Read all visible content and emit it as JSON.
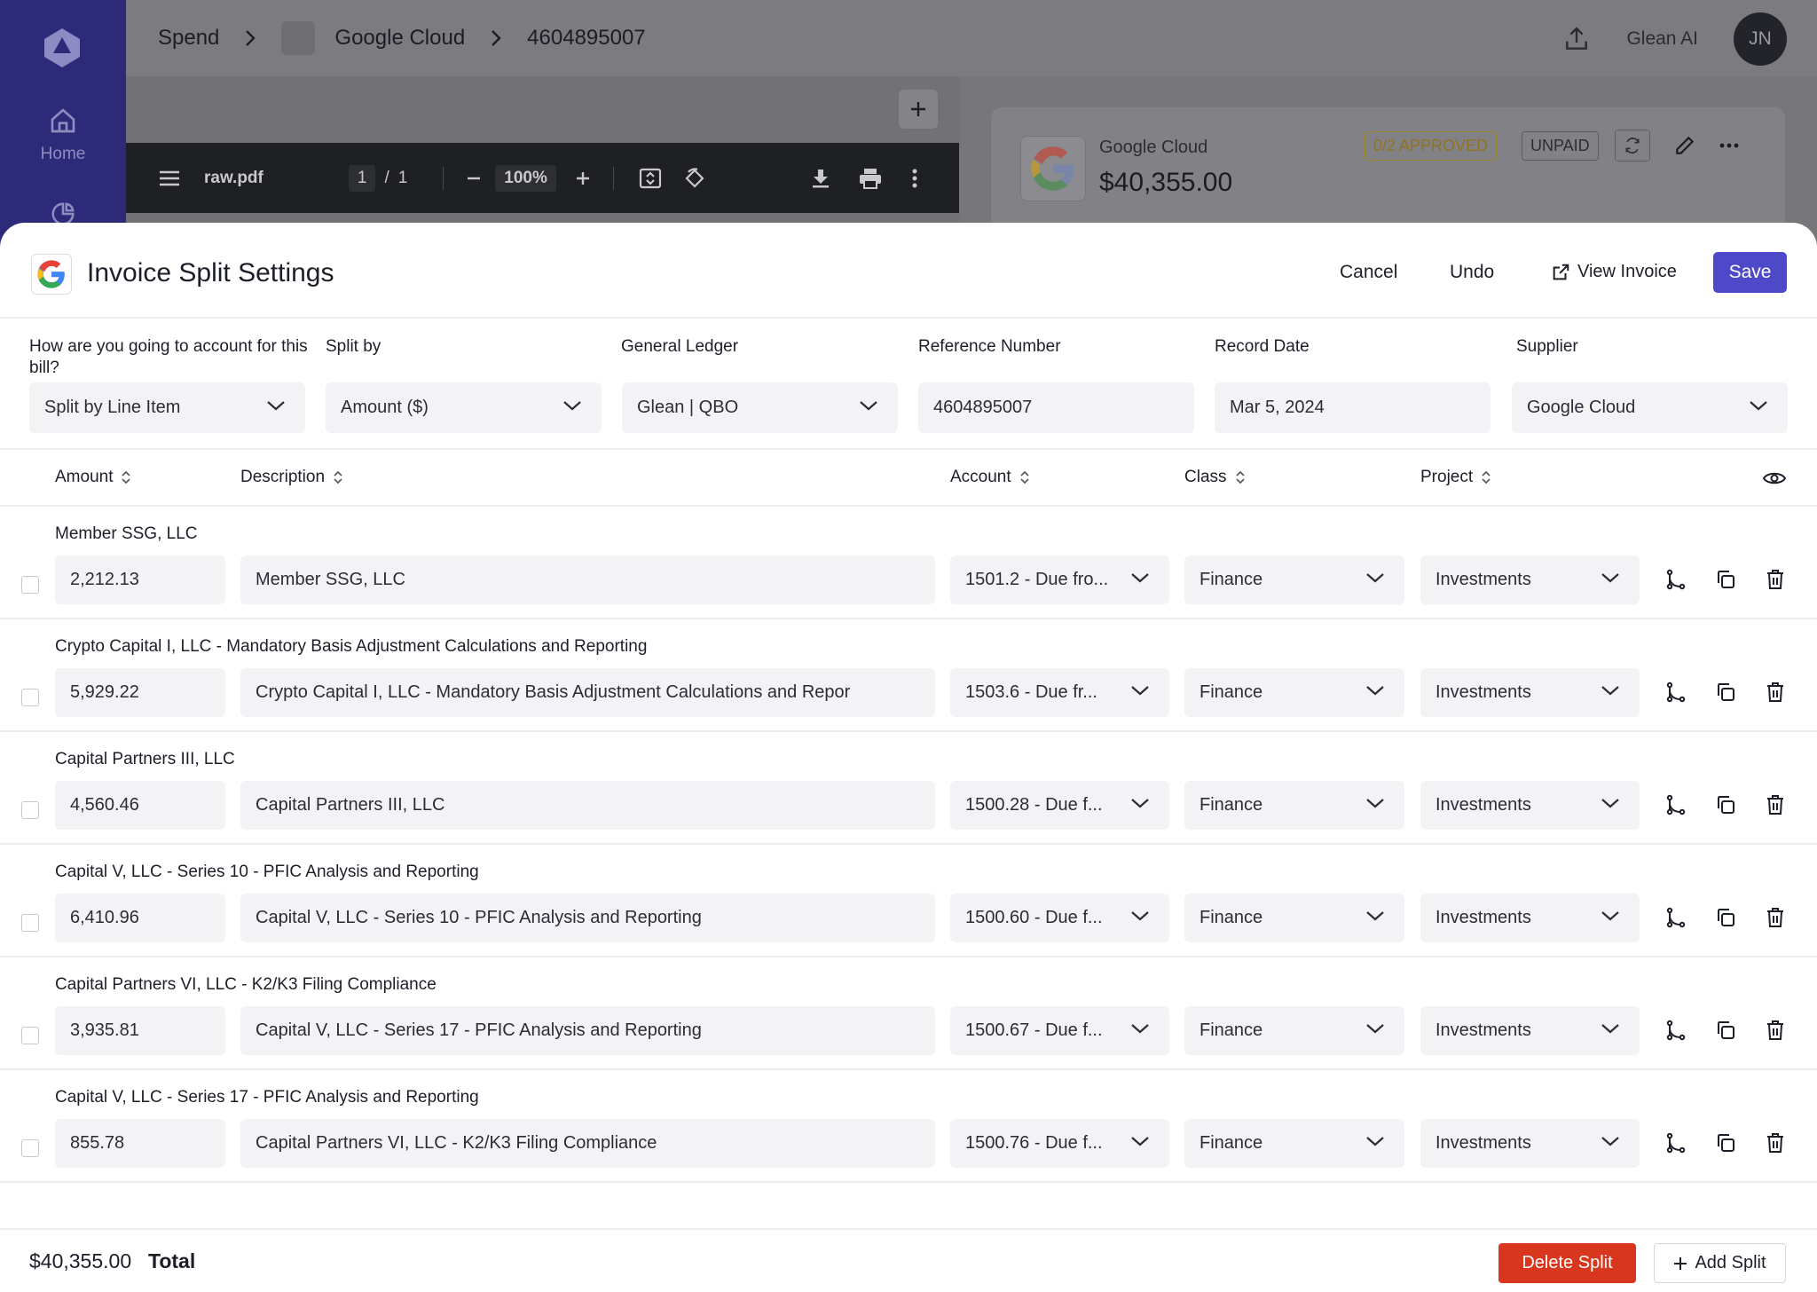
{
  "app": {
    "breadcrumb": [
      "Spend",
      "Google Cloud",
      "4604895007"
    ],
    "glean_ai_label": "Glean AI",
    "avatar_initials": "JN",
    "nav_home": "Home"
  },
  "pdf_viewer": {
    "file_name": "raw.pdf",
    "page_current": "1",
    "page_separator": "/",
    "page_total": "1",
    "zoom": "100%"
  },
  "invoice_card": {
    "supplier": "Google Cloud",
    "amount": "$40,355.00",
    "approval_badge": "0/2 APPROVED",
    "payment_badge": "UNPAID"
  },
  "modal": {
    "title": "Invoice Split Settings",
    "cancel_label": "Cancel",
    "undo_label": "Undo",
    "view_invoice_label": "View Invoice",
    "save_label": "Save"
  },
  "fields": {
    "accounting": {
      "label": "How are you going to account for this bill?",
      "value": "Split by Line Item"
    },
    "split_by": {
      "label": "Split by",
      "value": "Amount ($)"
    },
    "ledger": {
      "label": "General Ledger",
      "value": "Glean | QBO"
    },
    "reference": {
      "label": "Reference Number",
      "value": "4604895007"
    },
    "record_date": {
      "label": "Record Date",
      "value": "Mar 5, 2024"
    },
    "supplier": {
      "label": "Supplier",
      "value": "Google Cloud"
    }
  },
  "table": {
    "headers": {
      "amount": "Amount",
      "description": "Description",
      "account": "Account",
      "class": "Class",
      "project": "Project"
    },
    "rows": [
      {
        "title": "Member SSG, LLC",
        "amount": "2,212.13",
        "description": "Member SSG, LLC",
        "account": "1501.2 - Due fro...",
        "class": "Finance",
        "project": "Investments"
      },
      {
        "title": "Crypto Capital I, LLC - Mandatory Basis Adjustment Calculations and Reporting",
        "amount": "5,929.22",
        "description": "Crypto Capital I, LLC - Mandatory Basis Adjustment Calculations and Repor",
        "account": "1503.6 - Due fr...",
        "class": "Finance",
        "project": "Investments"
      },
      {
        "title": "Capital Partners III, LLC",
        "amount": "4,560.46",
        "description": "Capital Partners III, LLC",
        "account": "1500.28 - Due f...",
        "class": "Finance",
        "project": "Investments"
      },
      {
        "title": "Capital V, LLC - Series 10 - PFIC Analysis and Reporting",
        "amount": "6,410.96",
        "description": "Capital V, LLC - Series 10 - PFIC Analysis and Reporting",
        "account": "1500.60 - Due f...",
        "class": "Finance",
        "project": "Investments"
      },
      {
        "title": "Capital Partners VI, LLC - K2/K3 Filing Compliance",
        "amount": "3,935.81",
        "description": "Capital V, LLC - Series 17 - PFIC Analysis and Reporting",
        "account": "1500.67 - Due f...",
        "class": "Finance",
        "project": "Investments"
      },
      {
        "title": "Capital V, LLC - Series 17 - PFIC Analysis and Reporting",
        "amount": "855.78",
        "description": "Capital Partners VI, LLC - K2/K3 Filing Compliance",
        "account": "1500.76 - Due f...",
        "class": "Finance",
        "project": "Investments"
      }
    ]
  },
  "footer": {
    "total_amount": "$40,355.00",
    "total_label": "Total",
    "delete_label": "Delete Split",
    "add_label": "Add Split"
  },
  "colors": {
    "brand": "#4e49c8",
    "danger": "#d9361e",
    "sidebar": "#2d2a7a"
  }
}
